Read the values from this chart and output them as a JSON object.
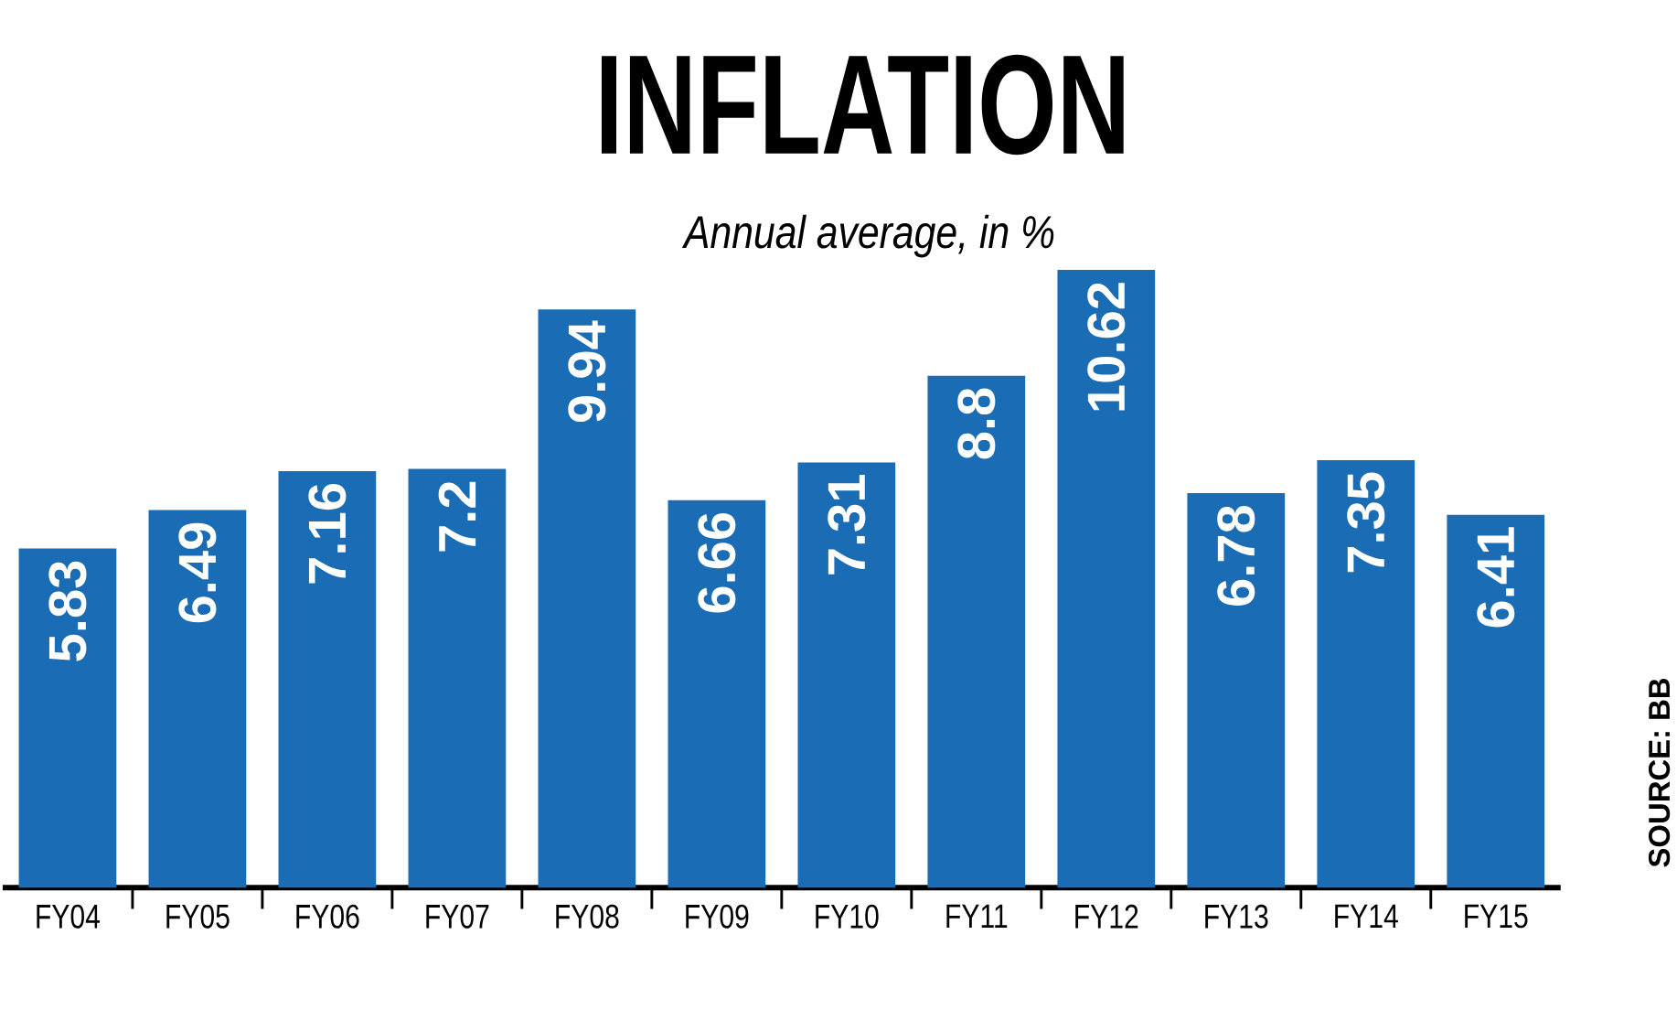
{
  "chart_data": {
    "type": "bar",
    "title": "INFLATION",
    "subtitle": "Annual average, in %",
    "categories": [
      "FY04",
      "FY05",
      "FY06",
      "FY07",
      "FY08",
      "FY09",
      "FY10",
      "FY11",
      "FY12",
      "FY13",
      "FY14",
      "FY15"
    ],
    "values": [
      5.83,
      6.49,
      7.16,
      7.2,
      9.94,
      6.66,
      7.31,
      8.8,
      10.62,
      6.78,
      7.35,
      6.41
    ],
    "color": "#1a6cb4",
    "data_labels": true,
    "annotations": [
      "SOURCE: BB"
    ]
  }
}
